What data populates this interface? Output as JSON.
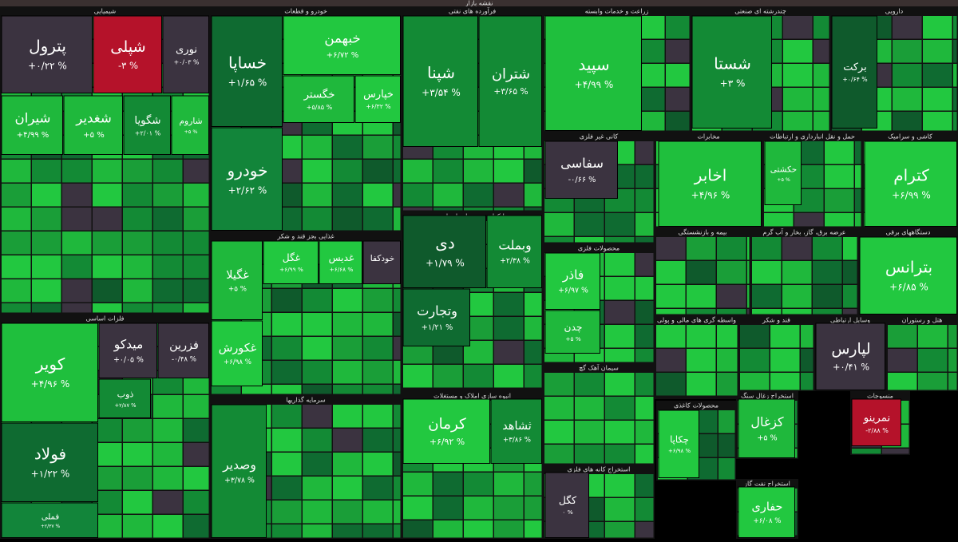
{
  "title": "نقشه بازار",
  "sectors": [
    {
      "name": "شیمیایی",
      "tiles": [
        {
          "name": "پترول",
          "change": "+۰/۲۲ %",
          "color": "#3b3340"
        },
        {
          "name": "شپلی",
          "change": "-۳ %",
          "color": "#b5122a"
        },
        {
          "name": "نوری",
          "change": "+۰/۰۳ %",
          "color": "#3b3340"
        },
        {
          "name": "شیران",
          "change": "+۴/۹۹ %",
          "color": "#1fb83c"
        },
        {
          "name": "شغدیر",
          "change": "+۵ %",
          "color": "#1fb83c"
        },
        {
          "name": "شگویا",
          "change": "+۲/۰۱ %",
          "color": "#138a35"
        },
        {
          "name": "شاروم",
          "change": "+۵ %",
          "color": "#1fb83c"
        }
      ]
    },
    {
      "name": "فلزات اساسی",
      "tiles": [
        {
          "name": "کویر",
          "change": "+۴/۹۶ %",
          "color": "#1fbf3d"
        },
        {
          "name": "فولاد",
          "change": "+۱/۲۲ %",
          "color": "#0f6b31"
        },
        {
          "name": "فملی",
          "change": "+۲/۳۷ %",
          "color": "#12853a"
        },
        {
          "name": "میدکو",
          "change": "+۰/۰۵ %",
          "color": "#3b3340"
        },
        {
          "name": "فزرین",
          "change": "-۰/۴۸ %",
          "color": "#3b3340"
        },
        {
          "name": "ذوب",
          "change": "+۲/۸۷ %",
          "color": "#138a35"
        }
      ]
    },
    {
      "name": "خودرو و قطعات",
      "tiles": [
        {
          "name": "خساپا",
          "change": "+۱/۶۵ %",
          "color": "#0f6b31"
        },
        {
          "name": "خودرو",
          "change": "+۲/۶۲ %",
          "color": "#12853a"
        },
        {
          "name": "خبهمن",
          "change": "+۶/۷۲ %",
          "color": "#22c840"
        },
        {
          "name": "خگستر",
          "change": "+۵/۸۵ %",
          "color": "#1fb83c"
        },
        {
          "name": "خپارس",
          "change": "+۶/۳۲ %",
          "color": "#22c840"
        }
      ]
    },
    {
      "name": "غذایی بجز قند و شکر",
      "tiles": [
        {
          "name": "غگیلا",
          "change": "+۵ %",
          "color": "#1fb83c"
        },
        {
          "name": "غکورش",
          "change": "+۶/۹۸ %",
          "color": "#22c840"
        },
        {
          "name": "غگل",
          "change": "+۶/۹۹ %",
          "color": "#22c840"
        },
        {
          "name": "غدیس",
          "change": "+۶/۶۸ %",
          "color": "#22c840"
        },
        {
          "name": "خودکفا",
          "change": "",
          "color": "#3b3340"
        }
      ]
    },
    {
      "name": "سرمایه گذاریها",
      "tiles": [
        {
          "name": "وصدیر",
          "change": "+۳/۷۸ %",
          "color": "#138a35"
        }
      ]
    },
    {
      "name": "فرآورده های نفتی",
      "tiles": [
        {
          "name": "شپنا",
          "change": "+۳/۵۴ %",
          "color": "#138a35"
        },
        {
          "name": "شتران",
          "change": "+۳/۶۵ %",
          "color": "#138a35"
        }
      ]
    },
    {
      "name": "بانکها و موسسات اعتباری",
      "tiles": [
        {
          "name": "دی",
          "change": "+۱/۷۹ %",
          "color": "#0f5a2c"
        },
        {
          "name": "وبملت",
          "change": "+۲/۳۸ %",
          "color": "#138a35"
        },
        {
          "name": "وتجارت",
          "change": "+۱/۲۱ %",
          "color": "#0f6b31"
        }
      ]
    },
    {
      "name": "انبوه سازی املاک و مستغلات",
      "tiles": [
        {
          "name": "کرمان",
          "change": "+۶/۹۲ %",
          "color": "#22c840"
        },
        {
          "name": "ثشاهد",
          "change": "+۳/۸۶ %",
          "color": "#138a35"
        }
      ]
    },
    {
      "name": "زراعت و خدمات وابسته",
      "tiles": [
        {
          "name": "سپید",
          "change": "+۴/۹۹ %",
          "color": "#1fbf3d"
        }
      ]
    },
    {
      "name": "چندرشته ای صنعتی",
      "tiles": [
        {
          "name": "شستا",
          "change": "+۳ %",
          "color": "#138a35"
        }
      ]
    },
    {
      "name": "دارویی",
      "tiles": [
        {
          "name": "برکت",
          "change": "+۰/۶۴ %",
          "color": "#0f5a2c"
        }
      ]
    },
    {
      "name": "کانی غیر فلزی",
      "tiles": [
        {
          "name": "سفاسی",
          "change": "-۰/۶۶ %",
          "color": "#3b3340"
        }
      ]
    },
    {
      "name": "مخابرات",
      "tiles": [
        {
          "name": "اخابر",
          "change": "+۴/۹۶ %",
          "color": "#1fbf3d"
        }
      ]
    },
    {
      "name": "حمل و نقل انبارداری و ارتباطات",
      "tiles": [
        {
          "name": "حکشتی",
          "change": "+۵ %",
          "color": "#1fb83c"
        }
      ]
    },
    {
      "name": "کاشی و سرامیک",
      "tiles": [
        {
          "name": "کترام",
          "change": "+۶/۹۹ %",
          "color": "#22c840"
        }
      ]
    },
    {
      "name": "محصولات فلزی",
      "tiles": [
        {
          "name": "فاذر",
          "change": "+۶/۹۷ %",
          "color": "#22c840"
        },
        {
          "name": "چدن",
          "change": "+۵ %",
          "color": "#1fb83c"
        }
      ]
    },
    {
      "name": "دستگاههای برقی",
      "tiles": [
        {
          "name": "بترانس",
          "change": "+۶/۸۵ %",
          "color": "#22c840"
        }
      ]
    },
    {
      "name": "وسایل ارتباطی",
      "tiles": [
        {
          "name": "لپارس",
          "change": "+۰/۴۱ %",
          "color": "#3b3340"
        }
      ]
    },
    {
      "name": "منسوجات",
      "tiles": [
        {
          "name": "نمرینو",
          "change": "-۲/۸۸ %",
          "color": "#b5122a"
        }
      ]
    },
    {
      "name": "محصولات کاغذی",
      "tiles": [
        {
          "name": "چکاپا",
          "change": "+۶/۹۸ %",
          "color": "#22c840"
        }
      ]
    },
    {
      "name": "استخراج کانه های فلزی",
      "tiles": [
        {
          "name": "کگل",
          "change": "۰ %",
          "color": "#3b3340"
        }
      ]
    },
    {
      "name": "استخراج زغال سنگ",
      "tiles": [
        {
          "name": "کزغال",
          "change": "+۵ %",
          "color": "#1fb83c"
        }
      ]
    },
    {
      "name": "استخراج نفت گاز",
      "tiles": [
        {
          "name": "حفاری",
          "change": "+۶/۰۸ %",
          "color": "#22c840"
        }
      ]
    },
    {
      "name": "بیمه و بازنشستگی",
      "tiles": []
    },
    {
      "name": "عرضه برق، گاز، بخار و آب گرم",
      "tiles": []
    },
    {
      "name": "واسطه گری های مالی و پولی",
      "tiles": []
    },
    {
      "name": "قند و شکر",
      "tiles": []
    },
    {
      "name": "هتل و رستوران",
      "tiles": []
    },
    {
      "name": "سیمان آهک گچ",
      "tiles": []
    }
  ]
}
